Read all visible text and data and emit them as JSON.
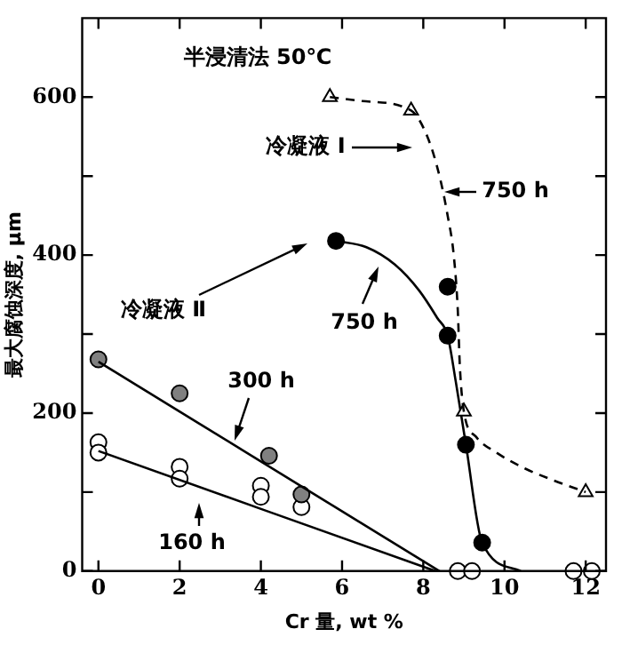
{
  "chart_data": {
    "type": "scatter",
    "xlabel": "Cr 量, wt %",
    "ylabel": "最大腐蚀深度, μm",
    "xlim": [
      -0.4,
      12.5
    ],
    "xticks": [
      0,
      2,
      4,
      6,
      8,
      10,
      12
    ],
    "ylim": [
      0,
      700
    ],
    "yticks": [
      0,
      {
        "value": 100,
        "label": null
      },
      200,
      {
        "value": 300,
        "label": null
      },
      400,
      {
        "value": 500,
        "label": null
      },
      600
    ],
    "grid": false,
    "legend": false,
    "series": [
      {
        "type": "line",
        "color": "#000000",
        "line_style": "dashed",
        "marker": "none",
        "x": [
          5.7,
          6.5,
          7.7,
          8.1,
          8.4,
          8.6,
          8.75,
          8.85,
          8.9,
          9.0,
          9.3,
          9.8,
          10.5,
          11.2,
          12
        ],
        "values": [
          600,
          595,
          583,
          550,
          500,
          450,
          400,
          330,
          260,
          202,
          170,
          150,
          130,
          115,
          100
        ]
      },
      {
        "type": "scatter",
        "color": "#ffffff",
        "marker": "triangle",
        "x": [
          5.7,
          7.7,
          9.0,
          12
        ],
        "values": [
          600,
          583,
          202,
          100
        ]
      },
      {
        "type": "line",
        "color": "#000000",
        "line_style": "solid",
        "marker": "none",
        "x": [
          5.85,
          6.6,
          7.3,
          7.9,
          8.35,
          8.6,
          8.8,
          9.05,
          9.45,
          10.4
        ],
        "values": [
          418,
          410,
          388,
          355,
          320,
          298,
          240,
          160,
          36,
          0
        ]
      },
      {
        "type": "scatter",
        "color": "#000000",
        "marker": "circle",
        "x": [
          5.85,
          8.6,
          8.6,
          9.05,
          9.45
        ],
        "values": [
          418,
          360,
          298,
          160,
          36
        ]
      },
      {
        "type": "line",
        "color": "#000000",
        "line_style": "solid",
        "marker": "none",
        "x": [
          0,
          8.4
        ],
        "values": [
          265,
          0
        ]
      },
      {
        "type": "scatter",
        "color": "#808080",
        "marker": "circle",
        "x": [
          0,
          2,
          4.2,
          5.0
        ],
        "values": [
          268,
          225,
          146,
          97
        ]
      },
      {
        "type": "line",
        "color": "#000000",
        "line_style": "solid",
        "marker": "none",
        "x": [
          0,
          8.3
        ],
        "values": [
          152,
          0
        ]
      },
      {
        "type": "scatter",
        "color": "#ffffff",
        "marker": "circle",
        "x": [
          0,
          0,
          2,
          2,
          4,
          4,
          5,
          8.85,
          9.2,
          11.7,
          12.15
        ],
        "values": [
          163,
          150,
          132,
          117,
          108,
          94,
          81,
          0,
          0,
          0,
          0
        ]
      }
    ],
    "annotations": [
      "半浸清法 50℃",
      "冷凝液 Ⅰ",
      "750 h",
      "冷凝液 Ⅱ",
      "750 h",
      "300 h",
      "160 h"
    ]
  }
}
